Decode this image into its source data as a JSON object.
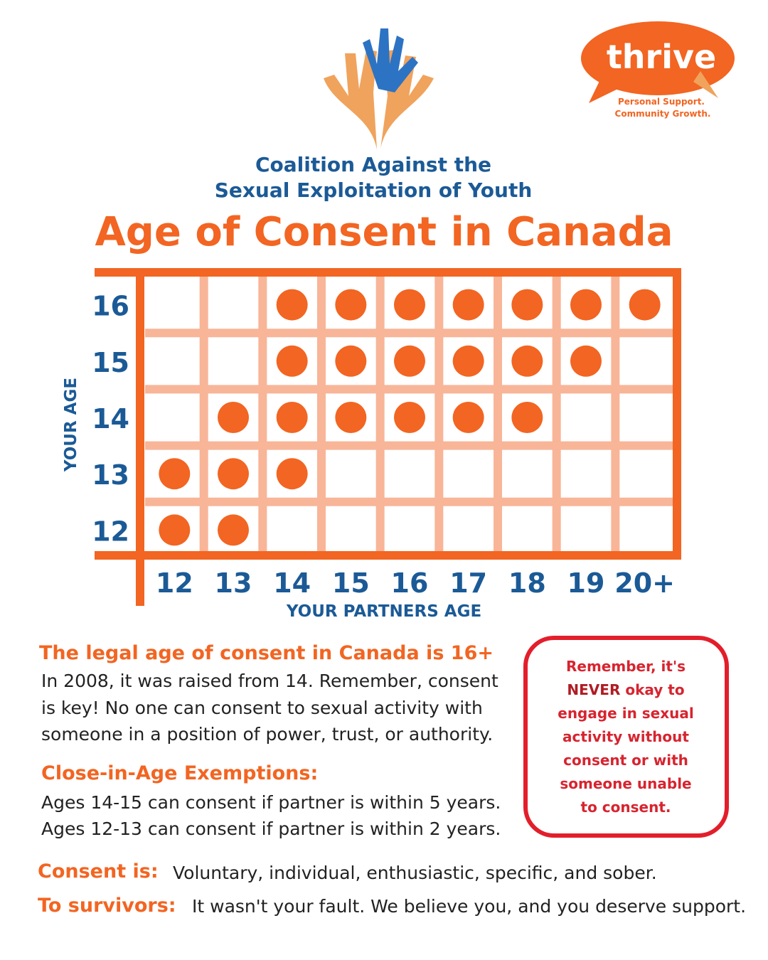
{
  "logo": {
    "name": "thrive",
    "tagline": [
      "Personal Support.",
      "Community Growth."
    ]
  },
  "header": {
    "lines": [
      "Coalition Against the",
      "Sexual Exploitation of Youth"
    ],
    "title": "Age of Consent in Canada"
  },
  "grid": {
    "y_title": "YOUR AGE",
    "x_title": "YOUR PARTNERS AGE",
    "rows": [
      "16",
      "15",
      "14",
      "13",
      "12"
    ],
    "columns": [
      "12",
      "13",
      "14",
      "15",
      "16",
      "17",
      "18",
      "19",
      "20+"
    ],
    "cells": [
      [
        0,
        0,
        1,
        1,
        1,
        1,
        1,
        1,
        1
      ],
      [
        0,
        0,
        1,
        1,
        1,
        1,
        1,
        1,
        0
      ],
      [
        0,
        1,
        1,
        1,
        1,
        1,
        1,
        0,
        0
      ],
      [
        1,
        1,
        1,
        0,
        0,
        0,
        0,
        0,
        0
      ],
      [
        1,
        1,
        0,
        0,
        0,
        0,
        0,
        0,
        0
      ]
    ]
  },
  "legal": {
    "heading": "The legal age of consent in Canada is 16+",
    "lines": [
      "In 2008, it was raised from 14. Remember, consent",
      "is key! No one can consent to sexual activity with",
      "someone in a position of power, trust, or authority."
    ]
  },
  "exemptions": {
    "heading": "Close-in-Age Exemptions:",
    "lines": [
      "Ages 14-15 can consent if partner is within 5 years.",
      "Ages 12-13 can consent if partner is within 2 years."
    ]
  },
  "alert": {
    "first": "Remember, it's",
    "emphasis": "NEVER",
    "emphasis_rest": "okay to",
    "lines": [
      "engage in sexual",
      "activity without",
      "consent or with",
      "someone unable",
      "to consent."
    ]
  },
  "consent": {
    "label": "Consent is:",
    "text": "Voluntary, individual, enthusiastic, specific, and sober."
  },
  "survivors": {
    "label": "To survivors:",
    "text": "It wasn't your fault. We believe you, and you deserve support."
  }
}
